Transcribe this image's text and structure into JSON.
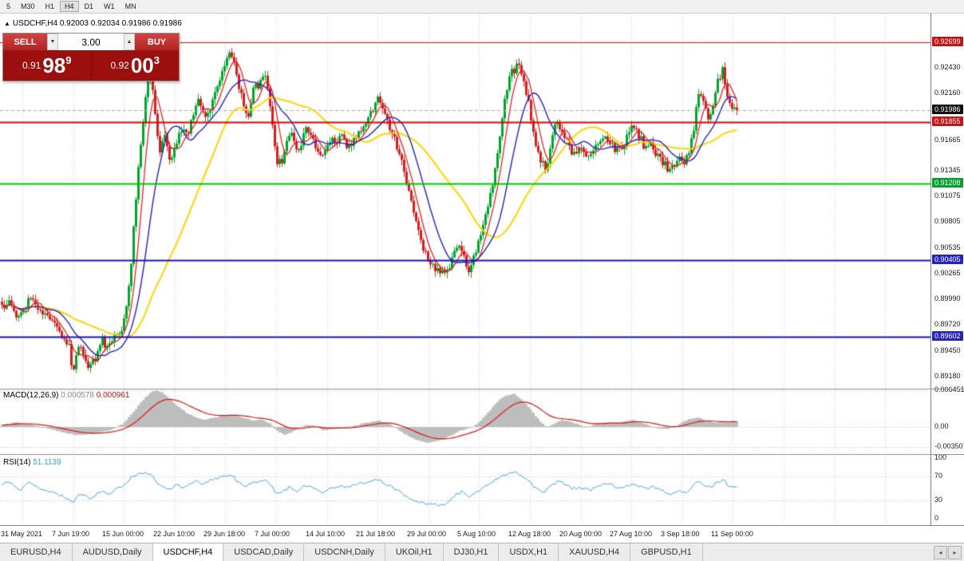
{
  "timeframe_toolbar": {
    "items": [
      "5",
      "M30",
      "H1",
      "H4",
      "D1",
      "W1",
      "MN"
    ],
    "active": "H4"
  },
  "chart_header": {
    "symbol_period": "USDCHF,H4",
    "ohlc": "0.92003 0.92034 0.91986 0.91986"
  },
  "trade_panel": {
    "sell_label": "SELL",
    "buy_label": "BUY",
    "volume": "3.00",
    "bid_small": "0.91",
    "bid_big": "98",
    "bid_sup": "9",
    "ask_small": "0.92",
    "ask_big": "00",
    "ask_sup": "3"
  },
  "indicators": {
    "macd": {
      "name": "MACD(12,26,9)",
      "value1": "0.000578",
      "value2": "0.000961",
      "axis": [
        {
          "label": "0.006451",
          "value": 0.006451
        },
        {
          "label": "0.00",
          "value": 0
        },
        {
          "label": "-0.003507",
          "value": -0.003507
        }
      ]
    },
    "rsi": {
      "name": "RSI(14)",
      "value": "51.1139",
      "axis": [
        {
          "label": "100",
          "value": 100
        },
        {
          "label": "70",
          "value": 70
        },
        {
          "label": "30",
          "value": 30
        },
        {
          "label": "0",
          "value": 0
        }
      ]
    }
  },
  "price_axis": {
    "ticks": [
      {
        "label": "0.92430",
        "value": 0.9243
      },
      {
        "label": "0.92160",
        "value": 0.9216
      },
      {
        "label": "0.91665",
        "value": 0.91665
      },
      {
        "label": "0.91345",
        "value": 0.91345
      },
      {
        "label": "0.91075",
        "value": 0.91075
      },
      {
        "label": "0.90805",
        "value": 0.90805
      },
      {
        "label": "0.90535",
        "value": 0.90535
      },
      {
        "label": "0.90265",
        "value": 0.90265
      },
      {
        "label": "0.89990",
        "value": 0.8999
      },
      {
        "label": "0.89720",
        "value": 0.8972
      },
      {
        "label": "0.89450",
        "value": 0.8945
      },
      {
        "label": "0.89180",
        "value": 0.8918
      }
    ],
    "badges": [
      {
        "label": "0.92699",
        "value": 0.92699,
        "color": "#c41414"
      },
      {
        "label": "0.91986",
        "value": 0.91986,
        "color": "#111111"
      },
      {
        "label": "0.91855",
        "value": 0.91855,
        "color": "#c41414"
      },
      {
        "label": "0.91208",
        "value": 0.91208,
        "color": "#00a42a"
      },
      {
        "label": "0.90405",
        "value": 0.90405,
        "color": "#2424bb"
      },
      {
        "label": "0.89602",
        "value": 0.89602,
        "color": "#2424bb"
      }
    ]
  },
  "time_axis": {
    "labels": [
      "31 May 2021",
      "7 Jun 19:00",
      "15 Jun 00:00",
      "22 Jun 10:00",
      "29 Jun 18:00",
      "7 Jul 00:00",
      "14 Jul 10:00",
      "21 Jul 18:00",
      "29 Jul 00:00",
      "5 Aug 10:00",
      "12 Aug 18:00",
      "20 Aug 00:00",
      "27 Aug 10:00",
      "3 Sep 18:00",
      "11 Sep 00:00"
    ]
  },
  "tabs": {
    "items": [
      "EURUSD,H4",
      "AUDUSD,Daily",
      "USDCHF,H4",
      "USDCAD,Daily",
      "USDCNH,Daily",
      "UKOil,H1",
      "DJ30,H1",
      "USDX,H1",
      "XAUUSD,H4",
      "GBPUSD,H1"
    ],
    "active_index": 2
  },
  "scroll_buttons": {
    "left": "◂",
    "right": "▸"
  },
  "colors": {
    "candle_up": "#00a62c",
    "candle_down": "#d91c1c",
    "ma_fast": "#e81111",
    "ma_mid": "#2020c8",
    "ma_slow": "#ffd400",
    "macd_histogram": "#bdbdbd",
    "macd_signal": "#e01010",
    "rsi_line": "#3f9fd8",
    "grid": "#cfcfcf"
  },
  "chart_data": {
    "type": "candlestick",
    "symbol": "USDCHF",
    "timeframe": "H4",
    "last_ohlc": {
      "open": 0.92003,
      "high": 0.92034,
      "low": 0.91986,
      "close": 0.91986
    },
    "current_price": 0.91986,
    "horizontal_lines": [
      {
        "price": 0.92699,
        "color": "#cc1111",
        "width": 1
      },
      {
        "price": 0.91855,
        "color": "#dd0000",
        "width": 2
      },
      {
        "price": 0.91208,
        "color": "#00c400",
        "width": 2
      },
      {
        "price": 0.90405,
        "color": "#1414bb",
        "width": 2
      },
      {
        "price": 0.89602,
        "color": "#1414bb",
        "width": 2
      }
    ],
    "price_path": [
      [
        0,
        0.8988
      ],
      [
        12,
        0.8996
      ],
      [
        24,
        0.8978
      ],
      [
        36,
        0.8998
      ],
      [
        48,
        0.899
      ],
      [
        58,
        0.898
      ],
      [
        68,
        0.8972
      ],
      [
        78,
        0.8962
      ],
      [
        86,
        0.895
      ],
      [
        91,
        0.8922
      ],
      [
        96,
        0.895
      ],
      [
        104,
        0.8942
      ],
      [
        112,
        0.8928
      ],
      [
        120,
        0.894
      ],
      [
        128,
        0.8955
      ],
      [
        136,
        0.8948
      ],
      [
        144,
        0.896
      ],
      [
        152,
        0.8968
      ],
      [
        158,
        0.899
      ],
      [
        164,
        0.904
      ],
      [
        170,
        0.9105
      ],
      [
        176,
        0.9165
      ],
      [
        182,
        0.9215
      ],
      [
        188,
        0.924
      ],
      [
        194,
        0.9195
      ],
      [
        200,
        0.9155
      ],
      [
        206,
        0.9168
      ],
      [
        212,
        0.9148
      ],
      [
        218,
        0.9158
      ],
      [
        226,
        0.918
      ],
      [
        234,
        0.917
      ],
      [
        242,
        0.9195
      ],
      [
        250,
        0.921
      ],
      [
        256,
        0.9185
      ],
      [
        264,
        0.9205
      ],
      [
        272,
        0.9222
      ],
      [
        280,
        0.924
      ],
      [
        288,
        0.9258
      ],
      [
        294,
        0.9248
      ],
      [
        300,
        0.9218
      ],
      [
        306,
        0.92
      ],
      [
        312,
        0.9195
      ],
      [
        318,
        0.923
      ],
      [
        324,
        0.9222
      ],
      [
        330,
        0.9238
      ],
      [
        336,
        0.9215
      ],
      [
        342,
        0.9175
      ],
      [
        348,
        0.914
      ],
      [
        354,
        0.9148
      ],
      [
        360,
        0.9165
      ],
      [
        366,
        0.9178
      ],
      [
        372,
        0.9152
      ],
      [
        378,
        0.9168
      ],
      [
        384,
        0.9182
      ],
      [
        390,
        0.9172
      ],
      [
        396,
        0.9158
      ],
      [
        402,
        0.9145
      ],
      [
        408,
        0.9155
      ],
      [
        414,
        0.9168
      ],
      [
        420,
        0.916
      ],
      [
        426,
        0.9172
      ],
      [
        432,
        0.9164
      ],
      [
        438,
        0.9158
      ],
      [
        444,
        0.9168
      ],
      [
        450,
        0.9178
      ],
      [
        456,
        0.9185
      ],
      [
        462,
        0.9192
      ],
      [
        468,
        0.9203
      ],
      [
        474,
        0.921
      ],
      [
        480,
        0.9198
      ],
      [
        486,
        0.9185
      ],
      [
        492,
        0.917
      ],
      [
        498,
        0.9158
      ],
      [
        504,
        0.9142
      ],
      [
        510,
        0.912
      ],
      [
        516,
        0.9095
      ],
      [
        522,
        0.9075
      ],
      [
        528,
        0.9058
      ],
      [
        534,
        0.9045
      ],
      [
        540,
        0.9038
      ],
      [
        546,
        0.9032
      ],
      [
        552,
        0.9028
      ],
      [
        558,
        0.9022
      ],
      [
        564,
        0.9035
      ],
      [
        570,
        0.9052
      ],
      [
        576,
        0.906
      ],
      [
        582,
        0.904
      ],
      [
        588,
        0.903
      ],
      [
        594,
        0.9048
      ],
      [
        600,
        0.9062
      ],
      [
        606,
        0.908
      ],
      [
        612,
        0.91
      ],
      [
        618,
        0.9128
      ],
      [
        624,
        0.9162
      ],
      [
        630,
        0.92
      ],
      [
        636,
        0.9228
      ],
      [
        642,
        0.924
      ],
      [
        648,
        0.9245
      ],
      [
        654,
        0.9235
      ],
      [
        660,
        0.9215
      ],
      [
        666,
        0.9185
      ],
      [
        672,
        0.916
      ],
      [
        678,
        0.9145
      ],
      [
        684,
        0.9138
      ],
      [
        690,
        0.9162
      ],
      [
        696,
        0.9185
      ],
      [
        702,
        0.918
      ],
      [
        708,
        0.917
      ],
      [
        714,
        0.9158
      ],
      [
        720,
        0.915
      ],
      [
        726,
        0.916
      ],
      [
        732,
        0.9152
      ],
      [
        738,
        0.9146
      ],
      [
        744,
        0.9156
      ],
      [
        750,
        0.9166
      ],
      [
        756,
        0.9172
      ],
      [
        762,
        0.9168
      ],
      [
        768,
        0.916
      ],
      [
        774,
        0.9155
      ],
      [
        780,
        0.9162
      ],
      [
        786,
        0.917
      ],
      [
        792,
        0.9182
      ],
      [
        798,
        0.9175
      ],
      [
        804,
        0.9165
      ],
      [
        810,
        0.9155
      ],
      [
        816,
        0.9162
      ],
      [
        822,
        0.9152
      ],
      [
        828,
        0.9145
      ],
      [
        834,
        0.914
      ],
      [
        840,
        0.9134
      ],
      [
        846,
        0.9142
      ],
      [
        852,
        0.915
      ],
      [
        858,
        0.9142
      ],
      [
        864,
        0.9158
      ],
      [
        870,
        0.9185
      ],
      [
        876,
        0.9222
      ],
      [
        882,
        0.92
      ],
      [
        888,
        0.9188
      ],
      [
        894,
        0.9205
      ],
      [
        900,
        0.9232
      ],
      [
        906,
        0.9242
      ],
      [
        911,
        0.921
      ],
      [
        916,
        0.9196
      ],
      [
        921,
        0.9208
      ],
      [
        925,
        0.9199
      ]
    ],
    "macd_path": [
      [
        0,
        0.0003
      ],
      [
        20,
        0.0008
      ],
      [
        40,
        0.0004
      ],
      [
        60,
        -0.0003
      ],
      [
        80,
        -0.001
      ],
      [
        95,
        -0.0014
      ],
      [
        110,
        -0.0013
      ],
      [
        125,
        -0.001
      ],
      [
        140,
        -0.0004
      ],
      [
        152,
        0.0004
      ],
      [
        162,
        0.0018
      ],
      [
        172,
        0.0036
      ],
      [
        182,
        0.0052
      ],
      [
        190,
        0.0063
      ],
      [
        198,
        0.0064
      ],
      [
        208,
        0.0056
      ],
      [
        220,
        0.004
      ],
      [
        232,
        0.0026
      ],
      [
        244,
        0.0017
      ],
      [
        256,
        0.0013
      ],
      [
        268,
        0.0016
      ],
      [
        280,
        0.002
      ],
      [
        292,
        0.0022
      ],
      [
        304,
        0.0016
      ],
      [
        316,
        0.0012
      ],
      [
        328,
        0.0012
      ],
      [
        338,
        0.0006
      ],
      [
        348,
        -0.0008
      ],
      [
        356,
        -0.0014
      ],
      [
        364,
        -0.001
      ],
      [
        374,
        -0.0002
      ],
      [
        384,
        0.0004
      ],
      [
        394,
        0.0002
      ],
      [
        404,
        -0.0006
      ],
      [
        414,
        -0.0004
      ],
      [
        424,
        0.0
      ],
      [
        434,
        -0.0002
      ],
      [
        444,
        0.0002
      ],
      [
        454,
        0.0006
      ],
      [
        464,
        0.0009
      ],
      [
        474,
        0.0011
      ],
      [
        484,
        0.0008
      ],
      [
        494,
        0.0
      ],
      [
        504,
        -0.001
      ],
      [
        514,
        -0.0018
      ],
      [
        524,
        -0.0024
      ],
      [
        534,
        -0.0028
      ],
      [
        544,
        -0.0026
      ],
      [
        554,
        -0.0022
      ],
      [
        564,
        -0.0016
      ],
      [
        574,
        -0.0008
      ],
      [
        584,
        -0.0004
      ],
      [
        594,
        0.0002
      ],
      [
        604,
        0.0014
      ],
      [
        614,
        0.003
      ],
      [
        624,
        0.0046
      ],
      [
        634,
        0.0056
      ],
      [
        644,
        0.0058
      ],
      [
        654,
        0.0048
      ],
      [
        664,
        0.0032
      ],
      [
        674,
        0.0014
      ],
      [
        684,
        0.0
      ],
      [
        694,
        0.0006
      ],
      [
        704,
        0.0012
      ],
      [
        714,
        0.001
      ],
      [
        724,
        0.0004
      ],
      [
        734,
        0.0
      ],
      [
        744,
        0.0004
      ],
      [
        754,
        0.0008
      ],
      [
        764,
        0.0008
      ],
      [
        774,
        0.0006
      ],
      [
        784,
        0.001
      ],
      [
        794,
        0.0012
      ],
      [
        804,
        0.0008
      ],
      [
        814,
        0.0002
      ],
      [
        824,
        -0.0002
      ],
      [
        834,
        -0.0004
      ],
      [
        844,
        0.0
      ],
      [
        854,
        0.0008
      ],
      [
        864,
        0.0014
      ],
      [
        874,
        0.0017
      ],
      [
        884,
        0.0012
      ],
      [
        894,
        0.0008
      ],
      [
        904,
        0.0008
      ],
      [
        914,
        0.0009
      ],
      [
        925,
        0.001
      ]
    ],
    "rsi_path": [
      [
        0,
        55
      ],
      [
        12,
        62
      ],
      [
        24,
        45
      ],
      [
        36,
        60
      ],
      [
        48,
        52
      ],
      [
        60,
        45
      ],
      [
        72,
        40
      ],
      [
        84,
        34
      ],
      [
        91,
        26
      ],
      [
        100,
        42
      ],
      [
        112,
        33
      ],
      [
        124,
        45
      ],
      [
        136,
        42
      ],
      [
        148,
        50
      ],
      [
        158,
        60
      ],
      [
        168,
        72
      ],
      [
        178,
        76
      ],
      [
        188,
        74
      ],
      [
        196,
        60
      ],
      [
        204,
        50
      ],
      [
        212,
        47
      ],
      [
        220,
        55
      ],
      [
        228,
        52
      ],
      [
        236,
        58
      ],
      [
        244,
        62
      ],
      [
        252,
        56
      ],
      [
        260,
        62
      ],
      [
        268,
        66
      ],
      [
        276,
        69
      ],
      [
        284,
        72
      ],
      [
        292,
        68
      ],
      [
        300,
        58
      ],
      [
        308,
        53
      ],
      [
        316,
        62
      ],
      [
        324,
        60
      ],
      [
        330,
        65
      ],
      [
        338,
        56
      ],
      [
        346,
        42
      ],
      [
        354,
        45
      ],
      [
        362,
        52
      ],
      [
        370,
        44
      ],
      [
        378,
        52
      ],
      [
        386,
        56
      ],
      [
        394,
        50
      ],
      [
        402,
        43
      ],
      [
        410,
        48
      ],
      [
        418,
        53
      ],
      [
        426,
        55
      ],
      [
        434,
        51
      ],
      [
        442,
        54
      ],
      [
        450,
        57
      ],
      [
        458,
        60
      ],
      [
        466,
        63
      ],
      [
        474,
        65
      ],
      [
        482,
        58
      ],
      [
        490,
        52
      ],
      [
        498,
        46
      ],
      [
        506,
        40
      ],
      [
        514,
        34
      ],
      [
        522,
        29
      ],
      [
        530,
        26
      ],
      [
        538,
        25
      ],
      [
        546,
        24
      ],
      [
        554,
        22
      ],
      [
        562,
        30
      ],
      [
        570,
        40
      ],
      [
        578,
        44
      ],
      [
        586,
        35
      ],
      [
        594,
        42
      ],
      [
        602,
        48
      ],
      [
        610,
        55
      ],
      [
        618,
        62
      ],
      [
        626,
        69
      ],
      [
        634,
        74
      ],
      [
        642,
        76
      ],
      [
        650,
        75
      ],
      [
        658,
        66
      ],
      [
        666,
        56
      ],
      [
        674,
        48
      ],
      [
        682,
        44
      ],
      [
        690,
        54
      ],
      [
        698,
        61
      ],
      [
        706,
        58
      ],
      [
        714,
        52
      ],
      [
        722,
        48
      ],
      [
        730,
        52
      ],
      [
        738,
        47
      ],
      [
        746,
        52
      ],
      [
        754,
        56
      ],
      [
        762,
        58
      ],
      [
        770,
        53
      ],
      [
        778,
        50
      ],
      [
        786,
        54
      ],
      [
        794,
        58
      ],
      [
        802,
        53
      ],
      [
        810,
        49
      ],
      [
        818,
        52
      ],
      [
        826,
        47
      ],
      [
        834,
        43
      ],
      [
        842,
        40
      ],
      [
        850,
        46
      ],
      [
        858,
        42
      ],
      [
        866,
        50
      ],
      [
        874,
        62
      ],
      [
        882,
        55
      ],
      [
        890,
        51
      ],
      [
        898,
        60
      ],
      [
        906,
        65
      ],
      [
        914,
        52
      ],
      [
        925,
        51.1
      ]
    ],
    "y_axis_range": {
      "top": 0.93001,
      "bottom": 0.89052
    },
    "macd_axis_range": [
      0.006451,
      -0.003507
    ],
    "rsi_axis_range": [
      0,
      100
    ]
  }
}
